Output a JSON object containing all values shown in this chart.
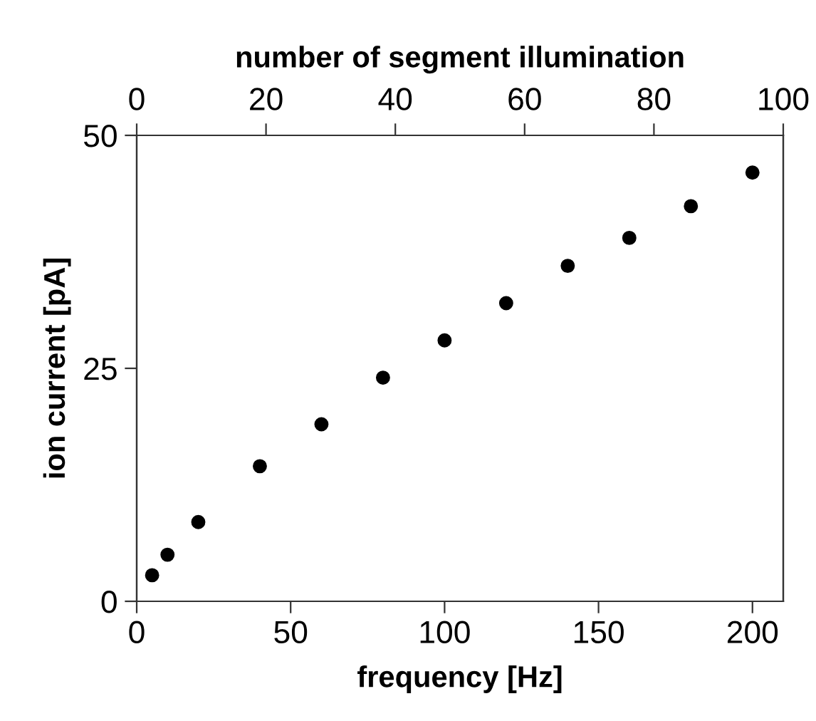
{
  "chart_data": {
    "type": "scatter",
    "x": [
      5,
      10,
      20,
      40,
      60,
      80,
      100,
      120,
      140,
      160,
      180,
      200
    ],
    "values": [
      2.8,
      5.0,
      8.5,
      14.5,
      19.0,
      24.0,
      28.0,
      32.0,
      36.0,
      39.0,
      42.4,
      46.0
    ],
    "color": "#000000",
    "marker": "circle",
    "xlabel": "frequency [Hz]",
    "ylabel": "ion current [pA]",
    "x2label": "number of segment illumination",
    "xlim": [
      0,
      210
    ],
    "xticks": [
      0,
      50,
      100,
      150,
      200
    ],
    "ylim": [
      0,
      50
    ],
    "yticks": [
      0,
      25,
      50
    ],
    "x2lim": [
      0,
      100
    ],
    "x2ticks": [
      0,
      20,
      40,
      60,
      80,
      100
    ],
    "grid": false
  }
}
